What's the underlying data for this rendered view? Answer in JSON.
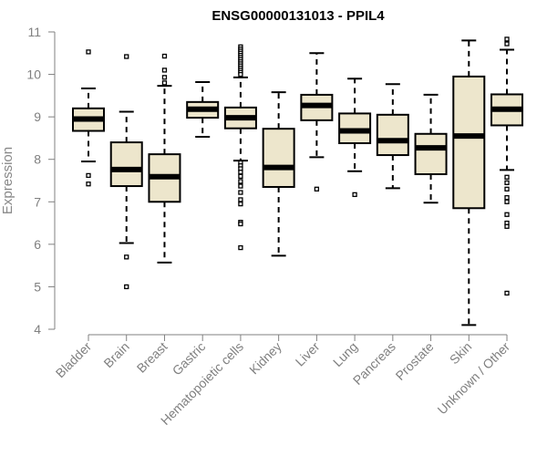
{
  "chart_data": {
    "type": "boxplot",
    "title": "ENSG00000131013 - PPIL4",
    "xlabel": "",
    "ylabel": "Expression",
    "ylim": [
      4,
      11
    ],
    "yticks": [
      "4",
      "5",
      "6",
      "7",
      "8",
      "9",
      "10",
      "11"
    ],
    "grid": false,
    "colors": {
      "box_fill": "#ede6cc",
      "box_stroke": "#000000",
      "median": "#000000",
      "axis_text": "#808080"
    },
    "categories": [
      "Bladder",
      "Brain",
      "Breast",
      "Gastric",
      "Hematopoietic cells",
      "Kidney",
      "Liver",
      "Lung",
      "Pancreas",
      "Prostate",
      "Skin",
      "Unknown / Other"
    ],
    "series": [
      {
        "category": "Bladder",
        "whisker_low": 7.95,
        "q1": 8.67,
        "median": 8.95,
        "q3": 9.2,
        "whisker_high": 9.67,
        "outliers": [
          10.53,
          7.62,
          7.42
        ]
      },
      {
        "category": "Brain",
        "whisker_low": 6.03,
        "q1": 7.37,
        "median": 7.76,
        "q3": 8.4,
        "whisker_high": 9.12,
        "outliers": [
          10.42,
          5.7,
          5.0
        ]
      },
      {
        "category": "Breast",
        "whisker_low": 5.57,
        "q1": 7.0,
        "median": 7.59,
        "q3": 8.12,
        "whisker_high": 9.73,
        "outliers": [
          10.43,
          10.1,
          9.93,
          9.8
        ]
      },
      {
        "category": "Gastric",
        "whisker_low": 8.53,
        "q1": 8.98,
        "median": 9.18,
        "q3": 9.35,
        "whisker_high": 9.82,
        "outliers": []
      },
      {
        "category": "Hematopoietic cells",
        "whisker_low": 7.97,
        "q1": 8.73,
        "median": 8.98,
        "q3": 9.22,
        "whisker_high": 9.93,
        "outliers": [
          10.65,
          10.6,
          10.55,
          10.5,
          10.45,
          10.4,
          10.35,
          10.3,
          10.25,
          10.2,
          10.15,
          10.1,
          10.05,
          10.0,
          7.92,
          7.85,
          7.78,
          7.7,
          7.6,
          7.48,
          7.37,
          7.22,
          7.05,
          6.95,
          6.52,
          6.48,
          5.92
        ]
      },
      {
        "category": "Kidney",
        "whisker_low": 5.73,
        "q1": 7.35,
        "median": 7.81,
        "q3": 8.72,
        "whisker_high": 9.58,
        "outliers": []
      },
      {
        "category": "Liver",
        "whisker_low": 8.05,
        "q1": 8.92,
        "median": 9.27,
        "q3": 9.52,
        "whisker_high": 10.5,
        "outliers": [
          7.3
        ]
      },
      {
        "category": "Lung",
        "whisker_low": 7.72,
        "q1": 8.38,
        "median": 8.67,
        "q3": 9.08,
        "whisker_high": 9.9,
        "outliers": [
          7.17
        ]
      },
      {
        "category": "Pancreas",
        "whisker_low": 7.32,
        "q1": 8.1,
        "median": 8.44,
        "q3": 9.05,
        "whisker_high": 9.77,
        "outliers": []
      },
      {
        "category": "Prostate",
        "whisker_low": 6.98,
        "q1": 7.65,
        "median": 8.27,
        "q3": 8.6,
        "whisker_high": 9.52,
        "outliers": []
      },
      {
        "category": "Skin",
        "whisker_low": 4.1,
        "q1": 6.85,
        "median": 8.55,
        "q3": 9.95,
        "whisker_high": 10.8,
        "outliers": []
      },
      {
        "category": "Unknown / Other",
        "whisker_low": 7.75,
        "q1": 8.8,
        "median": 9.18,
        "q3": 9.53,
        "whisker_high": 10.58,
        "outliers": [
          10.83,
          10.72,
          7.58,
          7.45,
          7.3,
          7.1,
          7.0,
          6.7,
          6.5,
          6.42,
          4.85
        ]
      }
    ]
  }
}
